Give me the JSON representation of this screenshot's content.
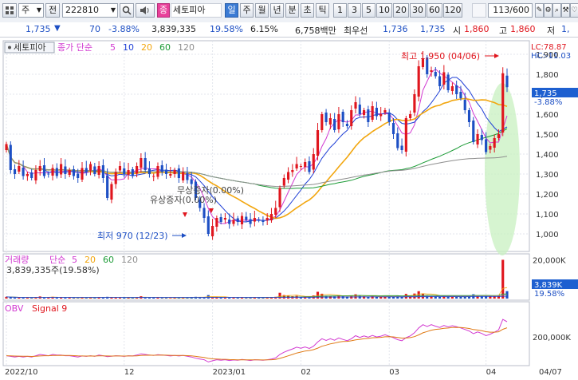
{
  "toolbar": {
    "menu_icon": "grid-icon",
    "market_select": "주",
    "prev_label": "전",
    "code": "222810",
    "search_icon": "search-icon",
    "info_icon": "speaker-icon",
    "name_badge": "종",
    "stock_name": "세토피아",
    "periods": [
      "일",
      "주",
      "월",
      "년",
      "분",
      "초",
      "틱"
    ],
    "period_selected": "일",
    "intervals": [
      "1",
      "3",
      "5",
      "10",
      "20",
      "30",
      "60",
      "120"
    ],
    "count_display": "113/600",
    "tool_icons": [
      "pencil-icon",
      "settings-icon",
      "search-icon",
      "wrench-icon",
      "heart-icon"
    ]
  },
  "info": {
    "price": "1,735",
    "arrow": "▼",
    "change": "70",
    "change_pct": "-3.88%",
    "volume": "3,839,335",
    "vol_ratio": "19.58%",
    "turnover": "6.15%",
    "amount": "6,758백만",
    "priority_label": "최우선",
    "bid": "1,736",
    "ask": "1,735",
    "open_label": "시",
    "open": "1,860",
    "high_label": "고",
    "high": "1,860",
    "low_label": "저",
    "low": "1,"
  },
  "price_panel": {
    "name_tag": "세토피아",
    "legend_title": "종가 단순",
    "ma_periods": [
      "5",
      "10",
      "20",
      "60",
      "120"
    ],
    "ma_colors": [
      "#d23ad1",
      "#1f3fd6",
      "#f2a60e",
      "#1c9b36",
      "#8e8e8e"
    ],
    "lc_label": "LC:78.87",
    "hc_label": "HC:-11.03",
    "high_annotation": "최고 1,950 (04/06)",
    "low_annotation": "최저 970 (12/23)",
    "event_label_1": "유상증자(0.00%)",
    "event_label_2": "무상증자(0.00%)",
    "current_price_badge": "1,735",
    "current_change_badge": "-3.88%"
  },
  "volume_panel": {
    "legend_title": "거래량",
    "legend_type": "단순",
    "ma_periods": [
      "5",
      "20",
      "60",
      "120"
    ],
    "volume_text": "3,839,335주(19.58%)",
    "current_badge": "3,839K",
    "current_pct_badge": "19.58%"
  },
  "obv_panel": {
    "legend_title": "OBV",
    "signal_label": "Signal 9"
  },
  "x_axis": {
    "labels": [
      "2022/10",
      "12",
      "2023/01",
      "02",
      "03",
      "04",
      "04/07"
    ]
  },
  "chart_data": [
    {
      "type": "candlestick",
      "panel": "price",
      "y_ticks": [
        1000,
        1100,
        1200,
        1300,
        1400,
        1500,
        1600,
        1700,
        1800,
        1900
      ],
      "ylim": [
        920,
        1960
      ],
      "closes": [
        1450,
        1320,
        1300,
        1340,
        1290,
        1300,
        1280,
        1320,
        1340,
        1290,
        1300,
        1330,
        1290,
        1350,
        1300,
        1320,
        1290,
        1280,
        1330,
        1310,
        1350,
        1300,
        1340,
        1280,
        1180,
        1250,
        1310,
        1340,
        1300,
        1320,
        1290,
        1340,
        1380,
        1320,
        1300,
        1290,
        1340,
        1310,
        1300,
        1300,
        1320,
        1280,
        1310,
        1270,
        1250,
        1180,
        1130,
        1080,
        1000,
        1040,
        1080,
        1060,
        1080,
        1050,
        1070,
        1060,
        1090,
        1070,
        1050,
        1080,
        1070,
        1060,
        1080,
        1100,
        1130,
        1230,
        1280,
        1310,
        1320,
        1350,
        1340,
        1360,
        1310,
        1400,
        1520,
        1600,
        1560,
        1580,
        1520,
        1600,
        1560,
        1540,
        1620,
        1660,
        1600,
        1620,
        1560,
        1640,
        1590,
        1600,
        1620,
        1560,
        1500,
        1430,
        1420,
        1580,
        1600,
        1700,
        1840,
        1880,
        1800,
        1820,
        1790,
        1740,
        1810,
        1720,
        1740,
        1700,
        1680,
        1620,
        1560,
        1460,
        1500,
        1470,
        1410,
        1440,
        1480,
        1500,
        1805,
        1735
      ]
    },
    {
      "type": "bar",
      "panel": "volume",
      "y_ticks": [
        20000
      ],
      "y_unit": "K",
      "volumes_k": [
        900,
        700,
        500,
        600,
        450,
        500,
        400,
        800,
        1100,
        500,
        400,
        900,
        600,
        500,
        400,
        500,
        400,
        300,
        700,
        500,
        600,
        400,
        800,
        500,
        900,
        600,
        500,
        400,
        500,
        600,
        400,
        700,
        1200,
        500,
        400,
        500,
        600,
        400,
        500,
        300,
        400,
        500,
        400,
        600,
        800,
        900,
        700,
        600,
        1800,
        900,
        700,
        600,
        500,
        600,
        400,
        500,
        600,
        400,
        500,
        600,
        500,
        400,
        500,
        700,
        900,
        3000,
        1800,
        1400,
        1200,
        1400,
        900,
        1000,
        1100,
        1600,
        3500,
        2500,
        1500,
        1400,
        1200,
        1800,
        1300,
        1100,
        1500,
        2200,
        1400,
        1200,
        1000,
        1500,
        1100,
        1000,
        1200,
        1300,
        1100,
        1600,
        1200,
        2400,
        1400,
        2600,
        3800,
        2500,
        1500,
        1400,
        1200,
        1100,
        1500,
        1200,
        1000,
        1100,
        1300,
        1200,
        1500,
        2200,
        1300,
        1200,
        1600,
        1300,
        1500,
        1700,
        20000,
        3839
      ]
    },
    {
      "type": "line",
      "panel": "obv",
      "y_ticks": [
        200000
      ],
      "y_unit": "K",
      "series": [
        {
          "name": "OBV",
          "values": [
            50,
            45,
            40,
            45,
            40,
            45,
            40,
            50,
            60,
            55,
            50,
            60,
            55,
            55,
            50,
            50,
            45,
            40,
            48,
            45,
            50,
            45,
            55,
            50,
            42,
            46,
            50,
            48,
            45,
            50,
            48,
            55,
            65,
            60,
            56,
            52,
            58,
            55,
            52,
            48,
            52,
            48,
            52,
            46,
            40,
            30,
            24,
            18,
            0,
            10,
            18,
            14,
            18,
            12,
            16,
            14,
            20,
            16,
            12,
            18,
            16,
            14,
            18,
            24,
            32,
            60,
            78,
            92,
            104,
            118,
            110,
            120,
            108,
            126,
            160,
            186,
            172,
            186,
            174,
            192,
            180,
            170,
            186,
            210,
            196,
            208,
            198,
            212,
            200,
            206,
            218,
            205,
            194,
            178,
            170,
            194,
            208,
            234,
            272,
            298,
            284,
            298,
            286,
            276,
            292,
            280,
            290,
            282,
            272,
            260,
            248,
            226,
            240,
            228,
            210,
            222,
            238,
            256,
            340,
            322
          ]
        }
      ]
    }
  ]
}
